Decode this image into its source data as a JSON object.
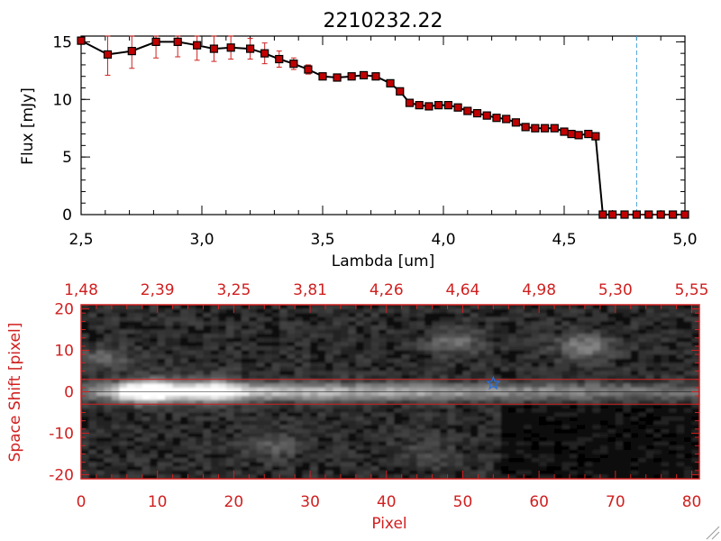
{
  "chart_data": [
    {
      "type": "line",
      "title": "2210232.22",
      "xlabel": "Lambda [um]",
      "ylabel": "Flux [mJy]",
      "xlim": [
        2.5,
        5.0
      ],
      "ylim": [
        0,
        15.5
      ],
      "xticks": [
        "2.5",
        "3.0",
        "3.5",
        "4.0",
        "4.5",
        "5.0"
      ],
      "yticks": [
        "0",
        "5",
        "10",
        "15"
      ],
      "colors": {
        "line": "#000000",
        "marker": "#c00000",
        "errorbar": "#d02020",
        "cutoff": "#4aa3d8"
      },
      "cutoff_x": 4.8,
      "series": [
        {
          "name": "flux",
          "x": [
            2.5,
            2.61,
            2.71,
            2.81,
            2.9,
            2.98,
            3.05,
            3.12,
            3.2,
            3.26,
            3.32,
            3.38,
            3.44,
            3.5,
            3.56,
            3.62,
            3.67,
            3.72,
            3.78,
            3.82,
            3.86,
            3.9,
            3.94,
            3.98,
            4.02,
            4.06,
            4.1,
            4.14,
            4.18,
            4.22,
            4.26,
            4.3,
            4.34,
            4.38,
            4.42,
            4.46,
            4.5,
            4.53,
            4.56,
            4.6,
            4.63,
            4.66,
            4.7,
            4.75,
            4.8,
            4.85,
            4.9,
            4.95,
            5.0
          ],
          "y": [
            15.1,
            13.9,
            14.2,
            15.0,
            15.0,
            14.7,
            14.4,
            14.5,
            14.4,
            14.0,
            13.5,
            13.1,
            12.6,
            12.0,
            11.9,
            12.0,
            12.1,
            12.0,
            11.4,
            10.7,
            9.7,
            9.5,
            9.4,
            9.5,
            9.5,
            9.3,
            9.0,
            8.8,
            8.6,
            8.4,
            8.3,
            8.0,
            7.6,
            7.5,
            7.5,
            7.5,
            7.2,
            7.0,
            6.9,
            7.0,
            6.8,
            0.0,
            0.0,
            0.0,
            0.0,
            0.0,
            0.0,
            0.0,
            0.0
          ],
          "yerr": [
            0.3,
            1.8,
            1.5,
            1.4,
            1.3,
            1.3,
            1.1,
            1.0,
            0.9,
            0.9,
            0.7,
            0.5,
            0.4,
            0.3,
            0.3,
            0.3,
            0.3,
            0.3,
            0.3,
            0.3,
            0.3,
            0.3,
            0.3,
            0.3,
            0.3,
            0.3,
            0.3,
            0.3,
            0.3,
            0.3,
            0.3,
            0.3,
            0.3,
            0.3,
            0.3,
            0.3,
            0.3,
            0.3,
            0.3,
            0.3,
            0.3,
            0.2,
            0.1,
            0.1,
            0.1,
            0.1,
            0.1,
            0.1,
            0.1
          ]
        }
      ]
    },
    {
      "type": "heatmap",
      "xlabel": "Pixel",
      "ylabel": "Space Shift [pixel]",
      "xlim": [
        0,
        81
      ],
      "ylim": [
        -21,
        21
      ],
      "xticks": [
        "0",
        "10",
        "20",
        "30",
        "40",
        "50",
        "60",
        "70",
        "80"
      ],
      "yticks": [
        "-20",
        "-10",
        "0",
        "10",
        "20"
      ],
      "top_axis_ticks": [
        "1.48",
        "2.39",
        "3.25",
        "3.81",
        "4.26",
        "4.64",
        "4.98",
        "5.30",
        "5.55"
      ],
      "top_axis_positions": [
        0,
        10,
        20,
        30,
        40,
        50,
        60,
        70,
        80
      ],
      "extraction_window": [
        -3,
        3
      ],
      "marker": {
        "x": 54,
        "y": 2,
        "symbol": "star",
        "color": "#2a6fd8"
      },
      "colors": {
        "axis": "#d02020",
        "window": "#d02020"
      },
      "blobs": [
        {
          "x": 9,
          "y": 0,
          "intensity": 1.0
        },
        {
          "x": 17,
          "y": 0.3,
          "intensity": 0.7
        },
        {
          "x": 3,
          "y": 8,
          "intensity": 0.35
        },
        {
          "x": 49,
          "y": 12,
          "intensity": 0.45
        },
        {
          "x": 66,
          "y": 11,
          "intensity": 0.55
        },
        {
          "x": 25,
          "y": -13,
          "intensity": 0.3
        },
        {
          "x": 45,
          "y": -15,
          "intensity": 0.2
        }
      ]
    }
  ]
}
